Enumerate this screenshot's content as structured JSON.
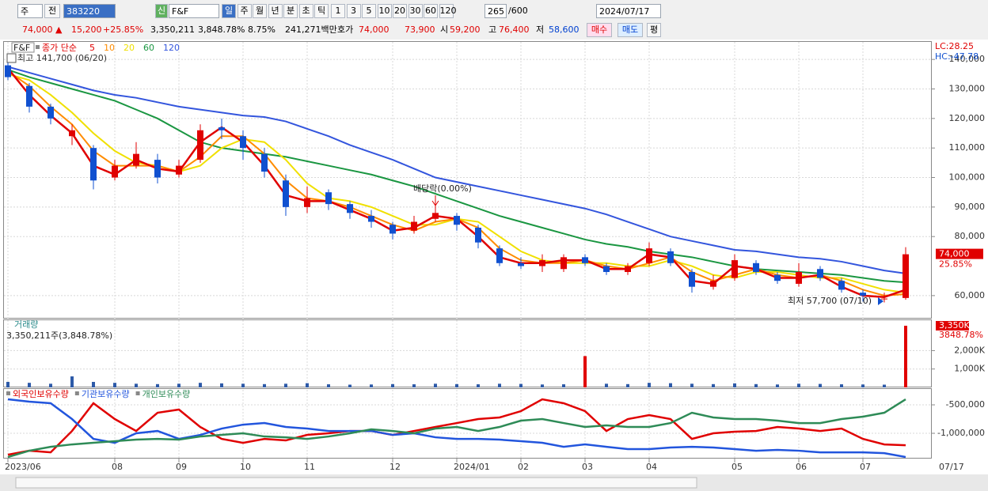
{
  "toolbar": {
    "market": "주",
    "prev": "전",
    "code": "383220",
    "badge": "신",
    "name": "F&F",
    "periods": [
      "일",
      "주",
      "월",
      "년",
      "분",
      "초",
      "틱"
    ],
    "intervals": [
      "1",
      "3",
      "5",
      "10",
      "20",
      "30",
      "60",
      "120"
    ],
    "count": "265",
    "max_count": "/600",
    "date": "2024/07/17"
  },
  "info_bar": {
    "price": "74,000 ▲",
    "change": "15,200",
    "change_rate": "+25.85%",
    "volume": "3,350,211",
    "volume_rate": "3,848.78%",
    "turnover": "8.75%",
    "amount": "241,271백만",
    "quote_label": "호가",
    "ask": "74,000",
    "bid": "73,900",
    "open_label": "시",
    "open": "59,200",
    "high_label": "고",
    "high": "76,400",
    "low_label": "저",
    "low": "58,600",
    "buy": "매수",
    "sell": "매도",
    "avg": "평"
  },
  "chart_data": [
    {
      "type": "candlestick",
      "title": "F&F",
      "ma_label": "종가 단순",
      "categories": [
        "2023/06",
        null,
        null,
        null,
        null,
        "08",
        null,
        null,
        "09",
        null,
        null,
        "10",
        null,
        null,
        "11",
        null,
        null,
        null,
        "12",
        null,
        null,
        "2024/01",
        null,
        null,
        "02",
        null,
        null,
        "03",
        null,
        null,
        "04",
        null,
        null,
        null,
        "05",
        null,
        null,
        "06",
        null,
        null,
        "07",
        null,
        null
      ],
      "open": [
        138000,
        131000,
        124000,
        114000,
        110000,
        100000,
        104000,
        106000,
        101000,
        106000,
        117000,
        114000,
        108000,
        99000,
        90000,
        95000,
        91000,
        87000,
        84000,
        82000,
        86000,
        87000,
        83000,
        76000,
        71000,
        70000,
        69000,
        73000,
        70000,
        68000,
        71000,
        75000,
        68000,
        63000,
        66000,
        71000,
        67000,
        64000,
        69000,
        65000,
        61000,
        59000,
        59200
      ],
      "high": [
        141700,
        132000,
        125000,
        118000,
        111000,
        106000,
        112000,
        108000,
        106000,
        118000,
        120000,
        116000,
        110000,
        101000,
        97000,
        96000,
        92000,
        89000,
        85000,
        87000,
        92000,
        88000,
        84000,
        77000,
        73000,
        74000,
        74000,
        74000,
        71000,
        71000,
        78000,
        76000,
        69000,
        67000,
        74000,
        72000,
        68000,
        71000,
        70000,
        66000,
        62000,
        61000,
        76400
      ],
      "low": [
        133000,
        122000,
        118000,
        111000,
        96000,
        99000,
        103000,
        98000,
        100000,
        105000,
        113000,
        106000,
        100000,
        87000,
        88000,
        89000,
        86000,
        83000,
        79000,
        81000,
        85000,
        82000,
        76000,
        70000,
        69000,
        68000,
        68000,
        70000,
        67000,
        67000,
        70000,
        70000,
        61000,
        62000,
        65000,
        67000,
        64000,
        63000,
        65000,
        61000,
        58000,
        57700,
        58600
      ],
      "close": [
        134000,
        124000,
        120000,
        116000,
        99000,
        104000,
        108000,
        100000,
        104000,
        116000,
        116000,
        110000,
        102000,
        90000,
        93000,
        91000,
        88000,
        85000,
        81000,
        85000,
        88000,
        84000,
        78000,
        71000,
        70000,
        72000,
        73000,
        71000,
        68000,
        70000,
        76000,
        71000,
        63000,
        65000,
        72000,
        68000,
        65000,
        68000,
        66000,
        62000,
        60000,
        59000,
        74000
      ],
      "series": [
        {
          "name": "5",
          "color": "#e00000",
          "values": [
            137000,
            128000,
            121000,
            115000,
            104000,
            101000,
            106000,
            103000,
            102000,
            112000,
            117000,
            112000,
            104000,
            94000,
            92000,
            92000,
            89000,
            86000,
            82000,
            83000,
            87000,
            86000,
            80000,
            73000,
            71000,
            71000,
            72000,
            72000,
            69000,
            69000,
            74000,
            73000,
            65000,
            64000,
            70000,
            69000,
            66000,
            66000,
            67000,
            63000,
            60000,
            59500,
            62000
          ]
        },
        {
          "name": "10",
          "color": "#ff8c00",
          "values": [
            136000,
            131000,
            124000,
            118000,
            109000,
            104000,
            104000,
            104000,
            102000,
            107000,
            114000,
            114000,
            108000,
            99000,
            93000,
            92000,
            90000,
            87000,
            84000,
            82000,
            85000,
            86000,
            83000,
            76000,
            72000,
            71000,
            71000,
            72000,
            70000,
            69000,
            71000,
            73000,
            68000,
            65000,
            67000,
            69000,
            67000,
            66000,
            67000,
            65000,
            62000,
            60000,
            60500
          ]
        },
        {
          "name": "20",
          "color": "#f0e000",
          "values": [
            135000,
            133000,
            128000,
            122000,
            115000,
            109000,
            105000,
            104000,
            102000,
            104000,
            110000,
            113000,
            112000,
            106000,
            98000,
            93000,
            92000,
            90000,
            87000,
            84000,
            84000,
            86000,
            85000,
            80000,
            75000,
            72000,
            71000,
            71000,
            71000,
            70000,
            70000,
            72000,
            70000,
            67000,
            66000,
            68000,
            68000,
            67000,
            66000,
            66000,
            64000,
            62000,
            61000
          ]
        },
        {
          "name": "60",
          "color": "#1a9641",
          "values": [
            136500,
            134000,
            132000,
            130000,
            128000,
            126000,
            123000,
            120000,
            116000,
            112000,
            110000,
            109000,
            108000,
            107000,
            105500,
            104000,
            102500,
            101000,
            99000,
            97000,
            94500,
            92000,
            89500,
            87000,
            85000,
            83000,
            81000,
            79000,
            77500,
            76500,
            75000,
            74000,
            73000,
            71500,
            70000,
            69000,
            68500,
            68000,
            67500,
            67000,
            66000,
            65000,
            64500
          ]
        },
        {
          "name": "120",
          "color": "#3355dd",
          "values": [
            137500,
            135500,
            133500,
            131500,
            129500,
            128000,
            127000,
            125500,
            124000,
            123000,
            122000,
            121000,
            120500,
            119000,
            116500,
            114000,
            111000,
            108500,
            106000,
            103000,
            100000,
            98500,
            97000,
            95500,
            94000,
            92500,
            91000,
            89500,
            87500,
            85000,
            82500,
            80000,
            78500,
            77000,
            75500,
            75000,
            74000,
            73000,
            72500,
            71500,
            70000,
            68500,
            67500
          ]
        }
      ],
      "ylim": [
        52200,
        146200
      ],
      "yticks": [
        {
          "value": 60000,
          "label": "60,000"
        },
        {
          "value": 80000,
          "label": "80,000"
        },
        {
          "value": 90000,
          "label": "90,000"
        },
        {
          "value": 100000,
          "label": "100,000"
        },
        {
          "value": 110000,
          "label": "110,000"
        },
        {
          "value": 120000,
          "label": "120,000"
        },
        {
          "value": 130000,
          "label": "130,000"
        },
        {
          "value": 140000,
          "label": "140,000"
        }
      ],
      "price_tag": {
        "value": 74000,
        "label": "74,000"
      },
      "change_tag": "25.85%",
      "high_note": "최고 141,700 (06/20)",
      "low_note": "최저 57,700 (07/10)",
      "dividend_note": "배당락(0.00%)",
      "lc": "LC:28.25",
      "hc": "HC:-47.78",
      "x_end_label": "07/17"
    },
    {
      "type": "bar",
      "title": "거래량",
      "subtitle": "3,350,211주(3,848.78%)",
      "color": "#2d5aa8",
      "values": [
        300,
        250,
        200,
        600,
        300,
        250,
        200,
        180,
        200,
        250,
        220,
        200,
        180,
        200,
        230,
        170,
        150,
        160,
        180,
        170,
        200,
        180,
        170,
        200,
        190,
        160,
        170,
        1700,
        200,
        180,
        250,
        230,
        200,
        180,
        220,
        180,
        160,
        200,
        190,
        170,
        160,
        150,
        3350
      ],
      "ylim": [
        0,
        3650
      ],
      "yticks": [
        {
          "value": 1000,
          "label": "1,000K"
        },
        {
          "value": 2000,
          "label": "2,000K"
        }
      ],
      "volume_tag": {
        "value": 3350,
        "label": "3,350K"
      },
      "rate_tag": "3848.78%"
    },
    {
      "type": "line",
      "ylim": [
        -1444000,
        -222000
      ],
      "yticks": [
        {
          "value": -500000,
          "label": "-500,000"
        },
        {
          "value": -1000000,
          "label": "-1,000,000"
        }
      ],
      "series": [
        {
          "name": "외국인보유수량",
          "color": "#e00000",
          "values": [
            -1376000,
            -1306000,
            -1334000,
            -959000,
            -472000,
            -750000,
            -959000,
            -639000,
            -583000,
            -889000,
            -1098000,
            -1167000,
            -1098000,
            -1125000,
            -1028000,
            -1000000,
            -959000,
            -959000,
            -1028000,
            -959000,
            -889000,
            -820000,
            -750000,
            -722000,
            -611000,
            -403000,
            -472000,
            -611000,
            -959000,
            -750000,
            -681000,
            -750000,
            -1098000,
            -1000000,
            -972000,
            -959000,
            -889000,
            -917000,
            -959000,
            -917000,
            -1098000,
            -1195000,
            -1209000
          ]
        },
        {
          "name": "기관보유수량",
          "color": "#2255dd",
          "values": [
            -403000,
            -444000,
            -472000,
            -750000,
            -1098000,
            -1167000,
            -1000000,
            -959000,
            -1098000,
            -1028000,
            -917000,
            -848000,
            -820000,
            -889000,
            -917000,
            -959000,
            -959000,
            -959000,
            -1028000,
            -1000000,
            -1070000,
            -1098000,
            -1098000,
            -1111000,
            -1139000,
            -1167000,
            -1237000,
            -1195000,
            -1237000,
            -1278000,
            -1278000,
            -1250000,
            -1237000,
            -1250000,
            -1278000,
            -1306000,
            -1292000,
            -1306000,
            -1334000,
            -1334000,
            -1334000,
            -1348000,
            -1417000
          ]
        },
        {
          "name": "개인보유수량",
          "color": "#2e8b57",
          "values": [
            -1417000,
            -1306000,
            -1237000,
            -1195000,
            -1167000,
            -1139000,
            -1111000,
            -1098000,
            -1111000,
            -1056000,
            -1028000,
            -1000000,
            -1056000,
            -1070000,
            -1098000,
            -1056000,
            -1000000,
            -931000,
            -959000,
            -1000000,
            -917000,
            -889000,
            -959000,
            -889000,
            -778000,
            -750000,
            -820000,
            -889000,
            -861000,
            -889000,
            -889000,
            -820000,
            -639000,
            -722000,
            -750000,
            -750000,
            -778000,
            -820000,
            -820000,
            -750000,
            -708000,
            -639000,
            -403000
          ]
        }
      ]
    }
  ]
}
